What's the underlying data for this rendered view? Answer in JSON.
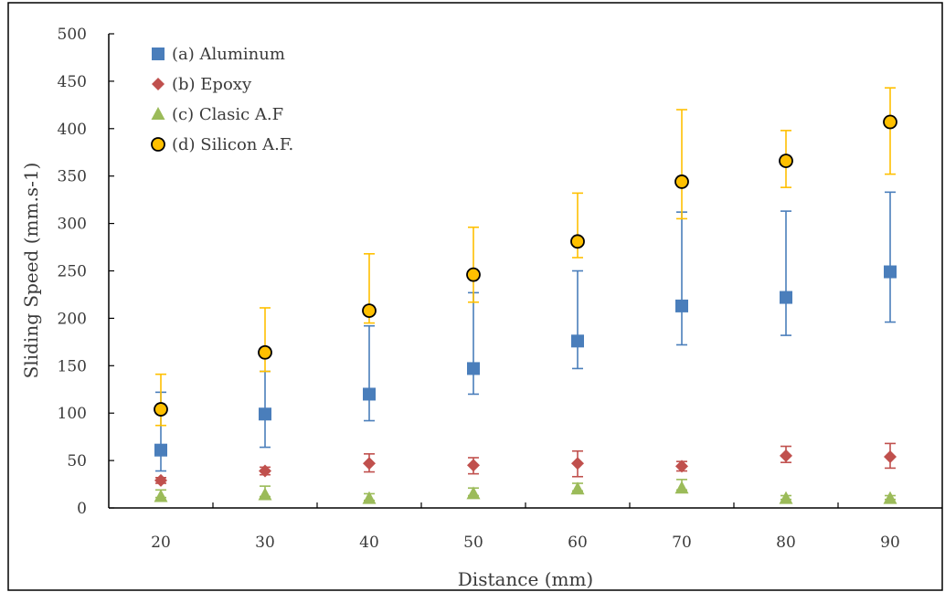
{
  "chart_data": {
    "type": "scatter",
    "xlabel": "Distance (mm)",
    "ylabel": "Sliding Speed (mm.s-1)",
    "ylim": [
      0,
      500
    ],
    "yticks": [
      "0",
      "50",
      "100",
      "150",
      "200",
      "250",
      "300",
      "350",
      "400",
      "450",
      "500"
    ],
    "categories": [
      "20",
      "30",
      "40",
      "50",
      "60",
      "70",
      "80",
      "90"
    ],
    "grid": false,
    "legend_position": "top-left",
    "series": [
      {
        "name": "(a) Aluminum",
        "marker": "square",
        "color": "#4a7ebb",
        "values": [
          61,
          99,
          120,
          147,
          176,
          213,
          222,
          249
        ],
        "err_low": [
          22,
          35,
          28,
          27,
          29,
          41,
          40,
          53
        ],
        "err_high": [
          61,
          45,
          72,
          80,
          74,
          99,
          91,
          84
        ]
      },
      {
        "name": "(b) Epoxy",
        "marker": "diamond",
        "color": "#c0504d",
        "values": [
          29,
          39,
          47,
          45,
          47,
          44,
          55,
          54
        ],
        "err_low": [
          3,
          4,
          9,
          9,
          14,
          5,
          7,
          12
        ],
        "err_high": [
          3,
          4,
          10,
          8,
          13,
          5,
          10,
          14
        ]
      },
      {
        "name": "(c) Clasic A.F",
        "marker": "triangle",
        "color": "#9bbb59",
        "values": [
          12,
          14,
          10,
          15,
          20,
          21,
          10,
          10
        ],
        "err_low": [
          1,
          2,
          2,
          2,
          2,
          2,
          1,
          1
        ],
        "err_high": [
          7,
          9,
          5,
          6,
          6,
          9,
          3,
          3
        ]
      },
      {
        "name": "(d) Silicon A.F.",
        "marker": "circle",
        "color": "#ffc000",
        "edge": "#000000",
        "values": [
          104,
          164,
          208,
          246,
          281,
          344,
          366,
          407
        ],
        "err_low": [
          17,
          20,
          13,
          29,
          17,
          39,
          28,
          55
        ],
        "err_high": [
          37,
          47,
          60,
          50,
          51,
          76,
          32,
          36
        ]
      }
    ]
  }
}
